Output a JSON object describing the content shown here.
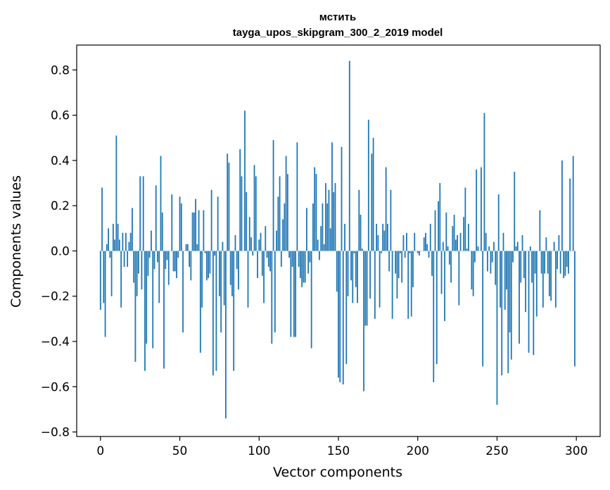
{
  "chart_data": {
    "type": "bar",
    "title_line1": "мстить",
    "title_line2": "tayga_upos_skipgram_300_2_2019 model",
    "xlabel": "Vector components",
    "ylabel": "Components values",
    "xlim": [
      -15,
      315
    ],
    "ylim": [
      -0.82,
      0.91
    ],
    "grid": false,
    "color": "#1f77b4",
    "x_ticks": [
      0,
      50,
      100,
      150,
      200,
      250,
      300
    ],
    "y_ticks": [
      -0.8,
      -0.6,
      -0.4,
      -0.2,
      0.0,
      0.2,
      0.4,
      0.6,
      0.8
    ],
    "y_tick_labels": [
      "−0.8",
      "−0.6",
      "−0.4",
      "−0.2",
      "0.0",
      "0.2",
      "0.4",
      "0.6",
      "0.8"
    ],
    "values": [
      -0.26,
      0.28,
      -0.23,
      -0.38,
      0.03,
      0.1,
      -0.03,
      -0.2,
      0.12,
      0.05,
      0.51,
      0.12,
      0.05,
      -0.25,
      0.08,
      -0.07,
      0.08,
      -0.07,
      0.04,
      0.08,
      0.19,
      -0.14,
      -0.49,
      -0.2,
      -0.1,
      0.33,
      -0.17,
      0.33,
      -0.53,
      -0.41,
      -0.11,
      -0.03,
      0.09,
      -0.43,
      -0.08,
      0.29,
      -0.05,
      -0.23,
      0.42,
      0.17,
      -0.52,
      -0.08,
      -0.04,
      -0.15,
      0.0,
      0.25,
      -0.09,
      -0.09,
      -0.12,
      -0.03,
      0.24,
      0.21,
      -0.36,
      0.0,
      0.03,
      0.03,
      -0.07,
      -0.13,
      0.17,
      0.17,
      0.23,
      0.03,
      0.18,
      -0.45,
      -0.25,
      0.18,
      -0.01,
      -0.13,
      -0.12,
      -0.1,
      0.27,
      -0.55,
      -0.02,
      -0.53,
      0.24,
      -0.2,
      -0.36,
      0.04,
      -0.24,
      -0.74,
      0.43,
      0.39,
      -0.15,
      -0.2,
      -0.53,
      0.07,
      -0.08,
      -0.17,
      0.45,
      0.33,
      0.0,
      0.62,
      0.26,
      -0.25,
      0.15,
      0.06,
      -0.02,
      0.38,
      0.33,
      -0.12,
      0.05,
      0.08,
      -0.11,
      -0.23,
      0.11,
      -0.03,
      -0.07,
      -0.09,
      -0.41,
      0.49,
      -0.36,
      0.09,
      0.24,
      0.33,
      -0.07,
      0.14,
      0.21,
      0.42,
      0.34,
      -0.03,
      -0.38,
      -0.07,
      -0.38,
      -0.38,
      0.48,
      -0.07,
      -0.12,
      -0.16,
      -0.14,
      -0.14,
      0.19,
      -0.1,
      -0.05,
      -0.43,
      0.21,
      0.37,
      0.34,
      0.05,
      -0.04,
      0.11,
      0.21,
      0.03,
      0.3,
      0.21,
      0.27,
      0.1,
      0.48,
      0.26,
      0.3,
      -0.18,
      -0.56,
      -0.58,
      0.46,
      -0.59,
      0.12,
      -0.5,
      -0.2,
      0.84,
      -0.13,
      -0.23,
      -0.01,
      -0.16,
      -0.23,
      0.27,
      0.16,
      0.01,
      -0.62,
      -0.33,
      -0.33,
      0.58,
      -0.21,
      0.43,
      0.5,
      -0.3,
      0.12,
      0.07,
      -0.25,
      -0.01,
      0.12,
      0.09,
      0.37,
      0.12,
      -0.09,
      0.27,
      -0.3,
      0.0,
      -0.1,
      -0.21,
      -0.12,
      -0.01,
      -0.14,
      0.07,
      -0.03,
      0.08,
      -0.3,
      -0.01,
      -0.29,
      -0.16,
      0.08,
      0.0,
      -0.01,
      -0.02,
      0.0,
      0.0,
      0.06,
      0.08,
      0.03,
      -0.03,
      0.12,
      -0.11,
      -0.58,
      0.18,
      -0.5,
      0.22,
      0.3,
      -0.19,
      0.04,
      -0.31,
      0.17,
      0.02,
      -0.06,
      -0.14,
      0.11,
      0.16,
      0.05,
      0.07,
      -0.24,
      0.08,
      0.0,
      0.15,
      0.28,
      0.01,
      0.12,
      0.0,
      -0.17,
      -0.2,
      -0.05,
      0.36,
      0.02,
      0.0,
      0.37,
      -0.51,
      0.61,
      0.08,
      -0.09,
      0.02,
      -0.1,
      -0.05,
      0.04,
      -0.15,
      -0.68,
      0.25,
      -0.25,
      -0.55,
      0.08,
      -0.26,
      -0.17,
      -0.54,
      -0.36,
      -0.48,
      -0.05,
      0.35,
      0.02,
      0.04,
      -0.41,
      -0.14,
      0.07,
      -0.12,
      -0.27,
      0.0,
      -0.45,
      0.02,
      -0.14,
      -0.46,
      -0.1,
      -0.29,
      0.0,
      0.18,
      -0.1,
      -0.25,
      -0.1,
      0.06,
      -0.1,
      -0.2,
      -0.22,
      0.0,
      0.04,
      -0.25,
      -0.08,
      0.07,
      -0.1,
      0.4,
      -0.12,
      -0.11,
      -0.07,
      -0.1,
      0.32,
      0.0,
      0.42,
      -0.51
    ]
  }
}
